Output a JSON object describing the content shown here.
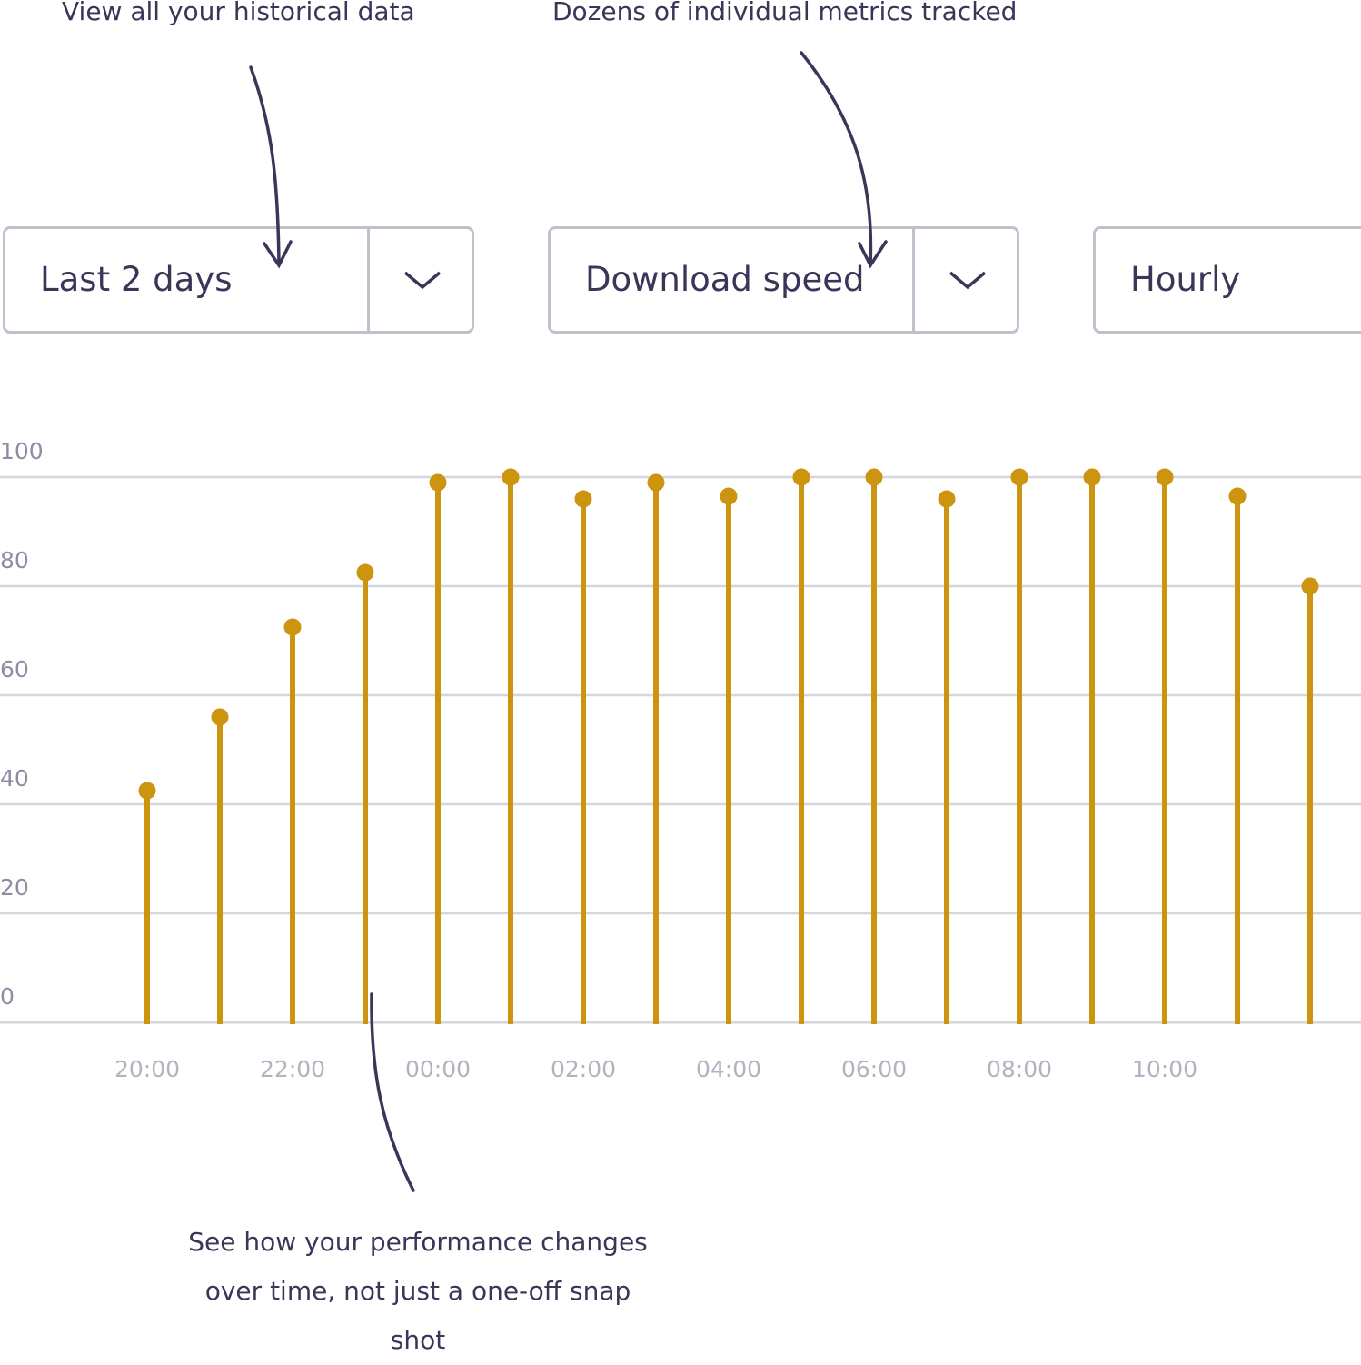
{
  "annotations": {
    "history": "View all your historical data",
    "metrics": "Dozens of individual metrics tracked",
    "performance": "See how your performance changes over time, not just a one-off snap shot"
  },
  "controls": {
    "range": {
      "value": "Last 2 days",
      "icon": "chevron-down-icon"
    },
    "metric": {
      "value": "Download speed",
      "icon": "chevron-down-icon"
    },
    "interval": {
      "value": "Hourly"
    }
  },
  "colors": {
    "stem": "#cc940f",
    "grid": "#d6d4de",
    "text": "#3b3558"
  },
  "chart_data": {
    "type": "lollipop",
    "ylim": [
      0,
      100
    ],
    "yticks": [
      0,
      20,
      40,
      60,
      80,
      100
    ],
    "grid": true,
    "x": [
      "20:00",
      "21:00",
      "22:00",
      "23:00",
      "00:00",
      "01:00",
      "02:00",
      "03:00",
      "04:00",
      "05:00",
      "06:00",
      "07:00",
      "08:00",
      "09:00",
      "10:00",
      "11:00",
      "12:00"
    ],
    "xtick_labels": [
      "20:00",
      "22:00",
      "00:00",
      "02:00",
      "04:00",
      "06:00",
      "08:00",
      "10:00"
    ],
    "values": [
      42.5,
      56,
      72.5,
      82.5,
      99,
      100,
      96,
      99,
      96.5,
      100,
      100,
      96,
      100,
      100,
      100,
      96.5,
      80
    ]
  }
}
